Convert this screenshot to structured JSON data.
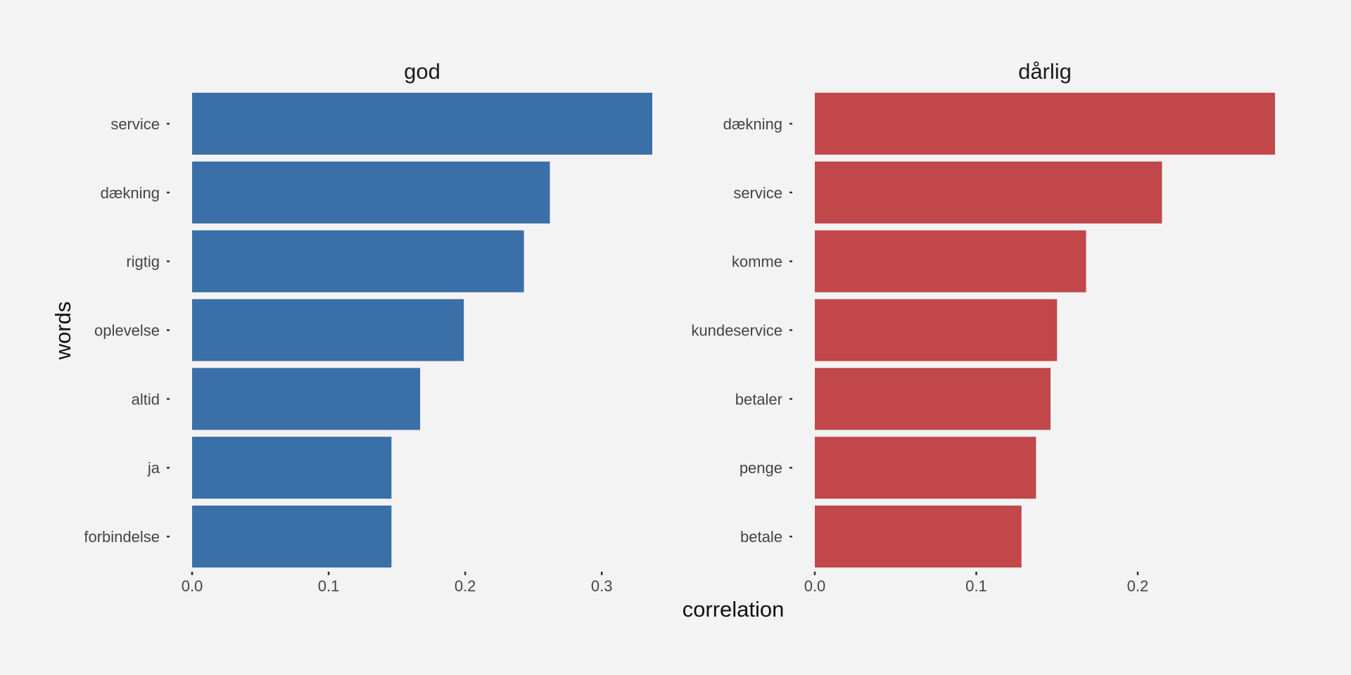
{
  "chart_data": {
    "type": "bar",
    "orientation": "horizontal",
    "xlabel": "correlation",
    "ylabel": "words",
    "grid": false,
    "legend": "none",
    "panels": [
      {
        "title": "god",
        "color": "#3a6fa7",
        "categories": [
          "service",
          "dækning",
          "rigtig",
          "oplevelse",
          "altid",
          "ja",
          "forbindelse"
        ],
        "values": [
          0.337,
          0.262,
          0.243,
          0.199,
          0.167,
          0.146,
          0.146
        ],
        "xlim": [
          0,
          0.337
        ],
        "ticks": [
          0.0,
          0.1,
          0.2,
          0.3
        ],
        "tick_labels": [
          "0.0",
          "0.1",
          "0.2",
          "0.3"
        ]
      },
      {
        "title": "dårlig",
        "color": "#c1474a",
        "categories": [
          "dækning",
          "service",
          "komme",
          "kundeservice",
          "betaler",
          "penge",
          "betale"
        ],
        "values": [
          0.285,
          0.215,
          0.168,
          0.15,
          0.146,
          0.137,
          0.128
        ],
        "xlim": [
          0,
          0.285
        ],
        "ticks": [
          0.0,
          0.1,
          0.2
        ],
        "tick_labels": [
          "0.0",
          "0.1",
          "0.2"
        ]
      }
    ]
  }
}
